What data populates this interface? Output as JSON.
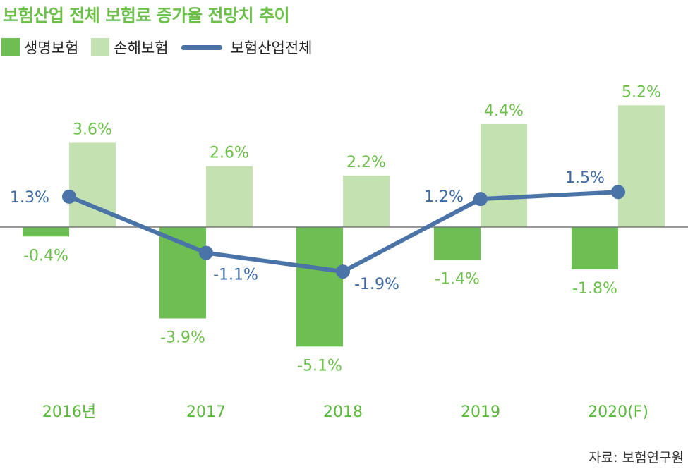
{
  "title": "보험산업 전체 보험료 증가율 전망치 추이",
  "source": "자료: 보험연구원",
  "chart_data": {
    "type": "bar",
    "categories": [
      "2016년",
      "2017",
      "2018",
      "2019",
      "2020(F)"
    ],
    "series": [
      {
        "name": "생명보험",
        "kind": "bar",
        "color": "#6cbf50",
        "values": [
          -0.4,
          -3.9,
          -5.1,
          -1.4,
          -1.8
        ],
        "labels": [
          "-0.4%",
          "-3.9%",
          "-5.1%",
          "-1.4%",
          "-1.8%"
        ]
      },
      {
        "name": "손해보험",
        "kind": "bar",
        "color": "#c3e1b1",
        "values": [
          3.6,
          2.6,
          2.2,
          4.4,
          5.2
        ],
        "labels": [
          "3.6%",
          "2.6%",
          "2.2%",
          "4.4%",
          "5.2%"
        ]
      },
      {
        "name": "보험산업전체",
        "kind": "line",
        "color": "#4a73a8",
        "values": [
          1.3,
          -1.1,
          -1.9,
          1.2,
          1.5
        ],
        "labels": [
          "1.3%",
          "-1.1%",
          "-1.9%",
          "1.2%",
          "1.5%"
        ]
      }
    ],
    "colors": {
      "title": "#6cc04a",
      "category": "#5cb83c",
      "bar_label": "#6cc04a",
      "line_label": "#3d6aa3"
    },
    "grid": false,
    "legend_position": "top-left"
  }
}
